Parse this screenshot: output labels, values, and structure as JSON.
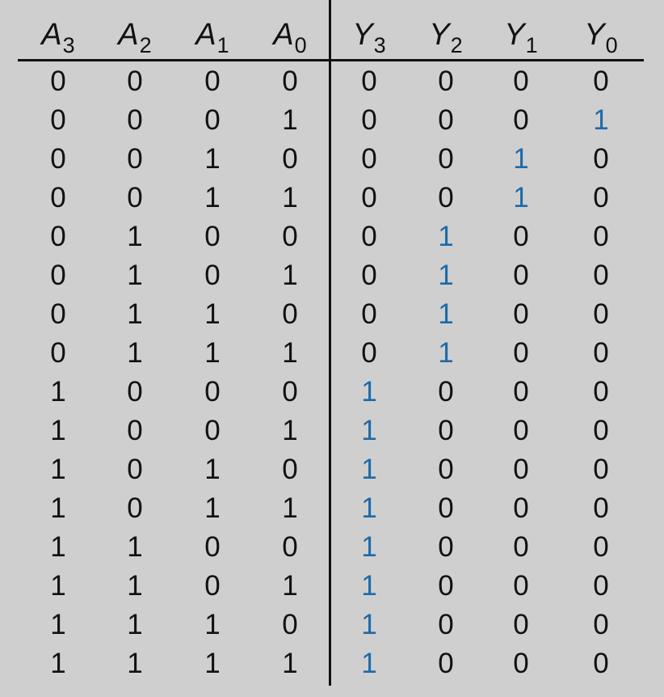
{
  "accent_color": "#1e6aa8",
  "headers": [
    {
      "var": "A",
      "sub": "3"
    },
    {
      "var": "A",
      "sub": "2"
    },
    {
      "var": "A",
      "sub": "1"
    },
    {
      "var": "A",
      "sub": "0"
    },
    {
      "var": "Y",
      "sub": "3"
    },
    {
      "var": "Y",
      "sub": "2"
    },
    {
      "var": "Y",
      "sub": "1"
    },
    {
      "var": "Y",
      "sub": "0"
    }
  ],
  "rows": [
    [
      "0",
      "0",
      "0",
      "0",
      "0",
      "0",
      "0",
      "0"
    ],
    [
      "0",
      "0",
      "0",
      "1",
      "0",
      "0",
      "0",
      "1"
    ],
    [
      "0",
      "0",
      "1",
      "0",
      "0",
      "0",
      "1",
      "0"
    ],
    [
      "0",
      "0",
      "1",
      "1",
      "0",
      "0",
      "1",
      "0"
    ],
    [
      "0",
      "1",
      "0",
      "0",
      "0",
      "1",
      "0",
      "0"
    ],
    [
      "0",
      "1",
      "0",
      "1",
      "0",
      "1",
      "0",
      "0"
    ],
    [
      "0",
      "1",
      "1",
      "0",
      "0",
      "1",
      "0",
      "0"
    ],
    [
      "0",
      "1",
      "1",
      "1",
      "0",
      "1",
      "0",
      "0"
    ],
    [
      "1",
      "0",
      "0",
      "0",
      "1",
      "0",
      "0",
      "0"
    ],
    [
      "1",
      "0",
      "0",
      "1",
      "1",
      "0",
      "0",
      "0"
    ],
    [
      "1",
      "0",
      "1",
      "0",
      "1",
      "0",
      "0",
      "0"
    ],
    [
      "1",
      "0",
      "1",
      "1",
      "1",
      "0",
      "0",
      "0"
    ],
    [
      "1",
      "1",
      "0",
      "0",
      "1",
      "0",
      "0",
      "0"
    ],
    [
      "1",
      "1",
      "0",
      "1",
      "1",
      "0",
      "0",
      "0"
    ],
    [
      "1",
      "1",
      "1",
      "0",
      "1",
      "0",
      "0",
      "0"
    ],
    [
      "1",
      "1",
      "1",
      "1",
      "1",
      "0",
      "0",
      "0"
    ]
  ],
  "highlight": [
    [
      1,
      7
    ],
    [
      2,
      6
    ],
    [
      3,
      6
    ],
    [
      4,
      5
    ],
    [
      5,
      5
    ],
    [
      6,
      5
    ],
    [
      7,
      5
    ],
    [
      8,
      4
    ],
    [
      9,
      4
    ],
    [
      10,
      4
    ],
    [
      11,
      4
    ],
    [
      12,
      4
    ],
    [
      13,
      4
    ],
    [
      14,
      4
    ],
    [
      15,
      4
    ]
  ]
}
